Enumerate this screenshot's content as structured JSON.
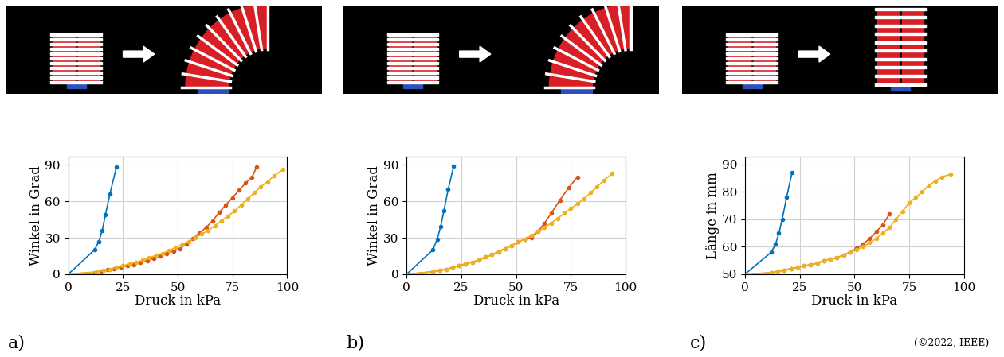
{
  "chart_data": [
    {
      "type": "line",
      "label": "a)",
      "x_label": "Druck in kPa",
      "y_label": "Winkel in Grad",
      "xlim": [
        0,
        100
      ],
      "xticks": [
        0,
        25,
        50,
        75,
        100
      ],
      "ylim": [
        0,
        97
      ],
      "yticks": [
        0,
        30,
        60,
        90
      ],
      "grid": true,
      "marker": "o",
      "line_style": "solid",
      "series": [
        {
          "color": "#0072BD",
          "x": [
            0,
            12,
            14,
            15.5,
            17,
            19,
            22
          ],
          "values": [
            0,
            20,
            27,
            36,
            49,
            66,
            88
          ]
        },
        {
          "color": "#D95319",
          "x": [
            0,
            12,
            15,
            18,
            21,
            24,
            27,
            30,
            33,
            36,
            39,
            42,
            45,
            48,
            51,
            54,
            57,
            60,
            63,
            66,
            69,
            72,
            75,
            78,
            81,
            84,
            86
          ],
          "values": [
            0,
            1.5,
            2.5,
            3.5,
            4.5,
            5.5,
            7,
            8,
            9.5,
            11,
            13,
            15,
            17,
            19,
            21,
            25,
            29.5,
            34,
            38.5,
            44,
            51,
            57,
            63,
            69,
            75,
            80,
            88
          ]
        },
        {
          "color": "#EDB120",
          "x": [
            0,
            13,
            16,
            19,
            22,
            25,
            28,
            31,
            34,
            37,
            40,
            43,
            46,
            49,
            52,
            55,
            58,
            61,
            64,
            67,
            70,
            73,
            76,
            79,
            82,
            85,
            88,
            91,
            94,
            98
          ],
          "values": [
            0,
            2,
            3,
            4,
            5.5,
            7,
            8.5,
            10,
            11.5,
            13.5,
            15.5,
            17,
            19.5,
            22,
            24.5,
            27,
            30,
            33,
            36,
            40,
            44,
            48,
            52,
            57,
            62,
            67,
            72,
            76,
            81,
            86
          ]
        }
      ]
    },
    {
      "type": "line",
      "label": "b)",
      "x_label": "Druck in kPa",
      "y_label": "Winkel in Grad",
      "xlim": [
        0,
        100
      ],
      "xticks": [
        0,
        25,
        50,
        75,
        100
      ],
      "ylim": [
        0,
        97
      ],
      "yticks": [
        0,
        30,
        60,
        90
      ],
      "grid": true,
      "marker": "o",
      "line_style": "solid",
      "series": [
        {
          "color": "#0072BD",
          "x": [
            0,
            12,
            14,
            15.5,
            17,
            19,
            21.5
          ],
          "values": [
            0,
            20,
            29,
            39,
            52,
            70,
            89
          ]
        },
        {
          "color": "#D95319",
          "x": [
            0,
            12,
            15,
            18,
            21,
            24,
            27,
            30,
            33,
            36,
            39,
            42,
            45,
            48,
            51,
            54,
            57,
            60,
            63,
            66,
            70,
            74,
            78
          ],
          "values": [
            0,
            2,
            3,
            4,
            5.5,
            7,
            8.5,
            10,
            11.5,
            14,
            16,
            18.5,
            21,
            23.5,
            26.5,
            29,
            30,
            35,
            42,
            50,
            61,
            71,
            80
          ]
        },
        {
          "color": "#EDB120",
          "x": [
            0,
            12,
            15,
            18,
            21,
            24,
            27,
            30,
            33,
            36,
            39,
            42,
            45,
            48,
            51,
            54,
            57,
            60,
            63,
            66,
            69,
            72,
            75,
            78,
            81,
            84,
            87,
            90,
            94
          ],
          "values": [
            0,
            2,
            3,
            4,
            5.5,
            7,
            8.5,
            10,
            11.5,
            14,
            16,
            18.5,
            21,
            23.5,
            26.5,
            29,
            32,
            35,
            38.5,
            42,
            46,
            50,
            54,
            58,
            62,
            67,
            72,
            77,
            83
          ]
        }
      ]
    },
    {
      "type": "line",
      "label": "c)",
      "x_label": "Druck in kPa",
      "y_label": "Länge in mm",
      "xlim": [
        0,
        100
      ],
      "xticks": [
        0,
        25,
        50,
        75,
        100
      ],
      "ylim": [
        50,
        93
      ],
      "yticks": [
        50,
        60,
        70,
        80,
        90
      ],
      "grid": true,
      "marker": "o",
      "line_style": "solid",
      "series": [
        {
          "color": "#0072BD",
          "x": [
            0,
            12,
            14,
            15.5,
            17,
            19,
            21.5
          ],
          "values": [
            50,
            58,
            61,
            65,
            70,
            78,
            87
          ]
        },
        {
          "color": "#D95319",
          "x": [
            0,
            12,
            15,
            18,
            21,
            24,
            27,
            30,
            33,
            36,
            39,
            42,
            45,
            48,
            51,
            54,
            57,
            60,
            63,
            66
          ],
          "values": [
            50,
            50.5,
            51,
            51.5,
            52,
            52.5,
            53,
            53.5,
            54,
            55,
            55.5,
            56,
            57,
            58,
            59.5,
            61,
            63,
            65.5,
            68,
            72
          ]
        },
        {
          "color": "#EDB120",
          "x": [
            0,
            12,
            15,
            18,
            21,
            24,
            27,
            30,
            33,
            36,
            39,
            42,
            45,
            48,
            51,
            54,
            57,
            60,
            63,
            66,
            69,
            72,
            75,
            78,
            81,
            84,
            87,
            90,
            94
          ],
          "values": [
            50,
            50.5,
            51,
            51.5,
            52,
            52.5,
            53,
            53.5,
            54,
            55,
            55.5,
            56,
            57,
            58,
            59,
            60,
            61.5,
            63,
            65,
            67,
            70,
            73,
            76,
            78,
            80,
            82.5,
            84,
            85.5,
            86.5
          ]
        }
      ]
    }
  ],
  "credit": "(©2022, IEEE)"
}
